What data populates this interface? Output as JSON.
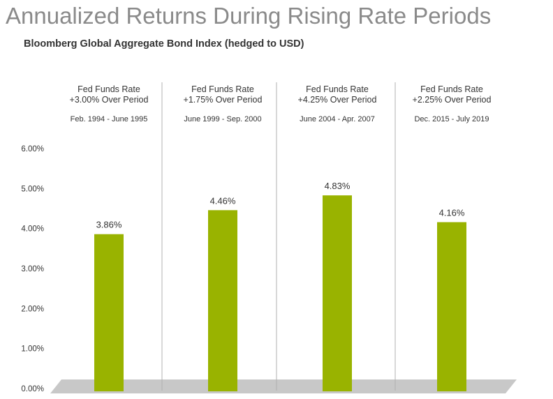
{
  "page": {
    "title": "Annualized Returns During Rising Rate Periods",
    "subtitle": "Bloomberg Global Aggregate Bond Index (hedged to USD)"
  },
  "chart_data": {
    "type": "bar",
    "title": "Annualized Returns During Rising Rate Periods",
    "subtitle": "Bloomberg Global Aggregate Bond Index (hedged to USD)",
    "xlabel": "",
    "ylabel": "",
    "ylim": [
      0,
      6
    ],
    "yticks": [
      "0.00%",
      "1.00%",
      "2.00%",
      "3.00%",
      "4.00%",
      "5.00%",
      "6.00%"
    ],
    "grid": false,
    "legend": "none",
    "bar_color": "#99b300",
    "floor_color": "#c8c8c8",
    "categories": [
      {
        "line1": "Fed Funds Rate",
        "line2": "+3.00% Over Period",
        "period": "Feb. 1994 - June 1995"
      },
      {
        "line1": "Fed Funds Rate",
        "line2": "+1.75% Over Period",
        "period": "June 1999 - Sep. 2000"
      },
      {
        "line1": "Fed Funds Rate",
        "line2": "+4.25% Over Period",
        "period": "June 2004 - Apr. 2007"
      },
      {
        "line1": "Fed Funds Rate",
        "line2": "+2.25% Over Period",
        "period": "Dec. 2015 - July 2019"
      }
    ],
    "values": [
      3.86,
      4.46,
      4.83,
      4.16
    ],
    "data_labels": [
      "3.86%",
      "4.46%",
      "4.83%",
      "4.16%"
    ]
  }
}
